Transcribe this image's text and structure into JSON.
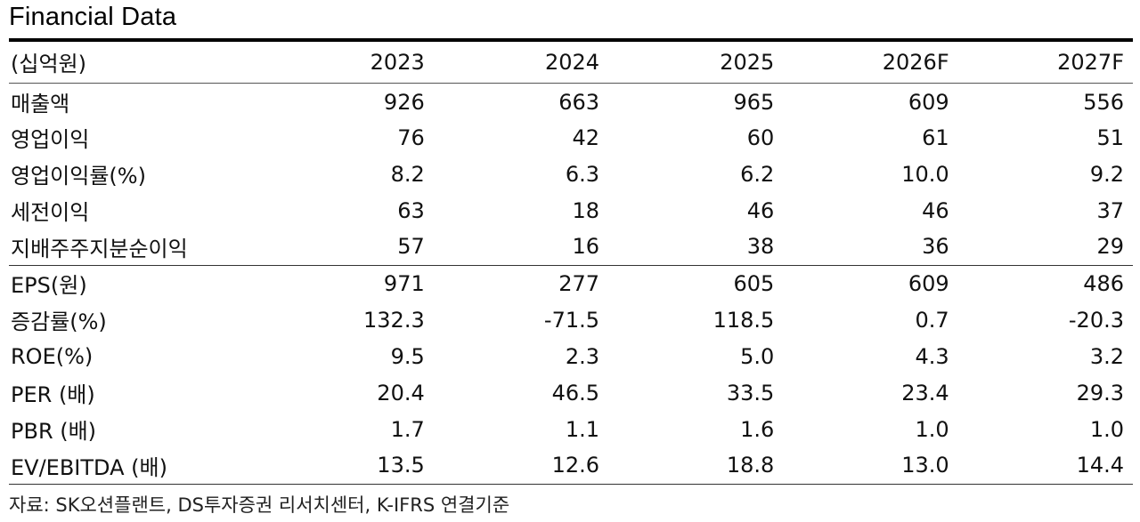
{
  "title": "Financial Data",
  "table": {
    "unit_label": "(십억원)",
    "years": [
      "2023",
      "2024",
      "2025",
      "2026F",
      "2027F"
    ],
    "group1": [
      {
        "label": "매출액",
        "values": [
          "926",
          "663",
          "965",
          "609",
          "556"
        ]
      },
      {
        "label": "영업이익",
        "values": [
          "76",
          "42",
          "60",
          "61",
          "51"
        ]
      },
      {
        "label": "영업이익률(%)",
        "values": [
          "8.2",
          "6.3",
          "6.2",
          "10.0",
          "9.2"
        ]
      },
      {
        "label": "세전이익",
        "values": [
          "63",
          "18",
          "46",
          "46",
          "37"
        ]
      },
      {
        "label": "지배주주지분순이익",
        "values": [
          "57",
          "16",
          "38",
          "36",
          "29"
        ]
      }
    ],
    "group2": [
      {
        "label": "EPS(원)",
        "values": [
          "971",
          "277",
          "605",
          "609",
          "486"
        ]
      },
      {
        "label": "증감률(%)",
        "values": [
          "132.3",
          "-71.5",
          "118.5",
          "0.7",
          "-20.3"
        ]
      },
      {
        "label": "ROE(%)",
        "values": [
          "9.5",
          "2.3",
          "5.0",
          "4.3",
          "3.2"
        ]
      },
      {
        "label": "PER (배)",
        "values": [
          "20.4",
          "46.5",
          "33.5",
          "23.4",
          "29.3"
        ]
      },
      {
        "label": "PBR (배)",
        "values": [
          "1.7",
          "1.1",
          "1.6",
          "1.0",
          "1.0"
        ]
      },
      {
        "label": "EV/EBITDA (배)",
        "values": [
          "13.5",
          "12.6",
          "18.8",
          "13.0",
          "14.4"
        ]
      }
    ]
  },
  "source": "자료: SK오션플랜트, DS투자증권 리서치센터, K-IFRS 연결기준"
}
